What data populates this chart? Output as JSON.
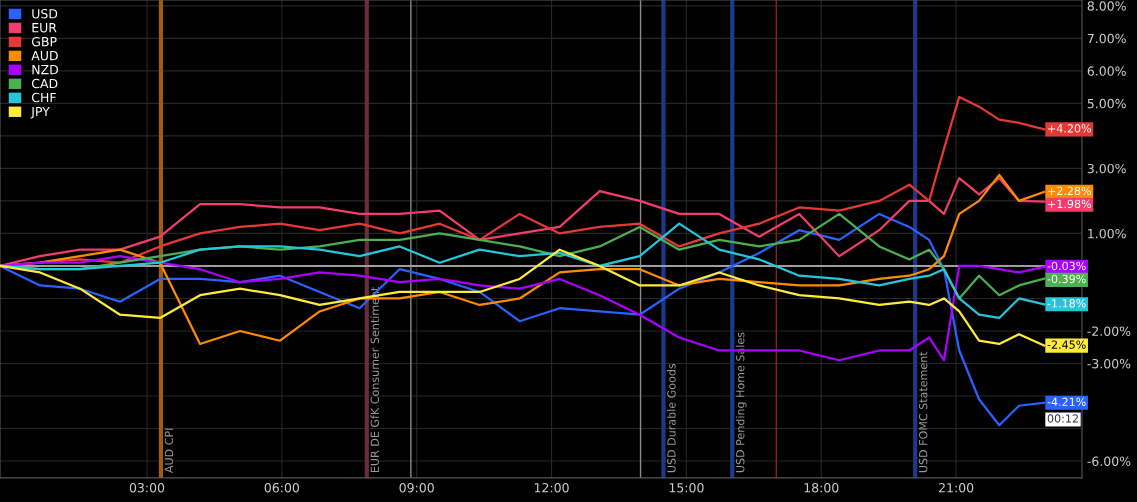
{
  "chart_data": {
    "type": "line",
    "x": [
      -0.27,
      0.62,
      1.51,
      2.4,
      3.29,
      4.18,
      5.07,
      5.96,
      6.84,
      7.73,
      8.62,
      9.51,
      10.4,
      11.29,
      12.18,
      13.07,
      13.96,
      14.84,
      15.73,
      16.62,
      17.51,
      18.4,
      19.29,
      19.96,
      20.4,
      20.73,
      21.07,
      21.51,
      21.96,
      22.4,
      22.96
    ],
    "series": [
      {
        "name": "USD",
        "color": "#2962ff",
        "values": [
          0,
          -0.6,
          -0.7,
          -1.1,
          -0.4,
          -0.4,
          -0.5,
          -0.3,
          -0.8,
          -1.3,
          -0.1,
          -0.4,
          -0.8,
          -1.7,
          -1.3,
          -1.4,
          -1.5,
          -0.7,
          -0.2,
          0.4,
          1.1,
          0.8,
          1.6,
          1.2,
          0.8,
          -0.1,
          -2.6,
          -4.1,
          -4.9,
          -4.3,
          -4.21
        ],
        "value_labels": [
          null,
          null,
          null,
          null,
          null,
          null,
          null,
          null,
          null,
          null,
          null,
          null,
          null,
          null,
          null,
          null,
          null,
          null,
          null,
          null,
          null,
          null,
          null,
          null,
          null,
          null,
          null,
          null,
          null,
          null,
          "-4.21%"
        ]
      },
      {
        "name": "EUR",
        "color": "#f23d6d",
        "values": [
          0,
          0.3,
          0.5,
          0.5,
          0.9,
          1.9,
          1.9,
          1.8,
          1.8,
          1.6,
          1.6,
          1.7,
          0.8,
          1.0,
          1.2,
          2.3,
          2.0,
          1.6,
          1.6,
          0.9,
          1.6,
          0.3,
          1.1,
          2.0,
          2.0,
          1.6,
          2.7,
          2.2,
          2.7,
          2.0,
          1.98
        ],
        "value_labels": [
          null,
          null,
          null,
          null,
          null,
          null,
          null,
          null,
          null,
          null,
          null,
          null,
          null,
          null,
          null,
          null,
          null,
          null,
          null,
          null,
          null,
          null,
          null,
          null,
          null,
          null,
          null,
          null,
          null,
          null,
          "+1.98%"
        ]
      },
      {
        "name": "GBP",
        "color": "#e53935",
        "values": [
          0,
          0.1,
          0.2,
          0.1,
          0.6,
          1.0,
          1.2,
          1.3,
          1.1,
          1.3,
          1.0,
          1.3,
          0.8,
          1.6,
          1.0,
          1.2,
          1.3,
          0.6,
          1.0,
          1.3,
          1.8,
          1.7,
          2.0,
          2.5,
          2.0,
          3.6,
          5.2,
          4.9,
          4.5,
          4.4,
          4.2
        ],
        "value_labels": [
          null,
          null,
          null,
          null,
          null,
          null,
          null,
          null,
          null,
          null,
          null,
          null,
          null,
          null,
          null,
          null,
          null,
          null,
          null,
          null,
          null,
          null,
          null,
          null,
          null,
          null,
          null,
          null,
          null,
          null,
          "+4.20%"
        ]
      },
      {
        "name": "AUD",
        "color": "#ff8c00",
        "values": [
          0,
          0.1,
          0.3,
          0.5,
          0.1,
          -2.4,
          -2.0,
          -2.3,
          -1.4,
          -1.0,
          -1.0,
          -0.8,
          -1.2,
          -1.0,
          -0.2,
          -0.1,
          -0.1,
          -0.6,
          -0.4,
          -0.5,
          -0.6,
          -0.6,
          -0.4,
          -0.3,
          -0.1,
          0.3,
          1.6,
          2.0,
          2.8,
          2.0,
          2.28
        ],
        "value_labels": [
          null,
          null,
          null,
          null,
          null,
          null,
          null,
          null,
          null,
          null,
          null,
          null,
          null,
          null,
          null,
          null,
          null,
          null,
          null,
          null,
          null,
          null,
          null,
          null,
          null,
          null,
          null,
          null,
          null,
          null,
          "+2.28%"
        ]
      },
      {
        "name": "NZD",
        "color": "#aa00ff",
        "values": [
          0,
          0.1,
          0.1,
          0.3,
          0.1,
          -0.1,
          -0.5,
          -0.4,
          -0.2,
          -0.3,
          -0.5,
          -0.4,
          -0.6,
          -0.7,
          -0.4,
          -0.9,
          -1.5,
          -2.2,
          -2.6,
          -2.6,
          -2.6,
          -2.9,
          -2.6,
          -2.6,
          -2.2,
          -2.9,
          0,
          0,
          -0.1,
          -0.2,
          -0.03
        ],
        "value_labels": [
          null,
          null,
          null,
          null,
          null,
          null,
          null,
          null,
          null,
          null,
          null,
          null,
          null,
          null,
          null,
          null,
          null,
          null,
          null,
          null,
          null,
          null,
          null,
          null,
          null,
          null,
          null,
          null,
          null,
          null,
          "-0.03%"
        ]
      },
      {
        "name": "CAD",
        "color": "#4caf50",
        "values": [
          0,
          -0.1,
          -0.1,
          0.1,
          0.3,
          0.5,
          0.6,
          0.5,
          0.6,
          0.8,
          0.8,
          1.0,
          0.8,
          0.6,
          0.3,
          0.6,
          1.2,
          0.5,
          0.8,
          0.6,
          0.8,
          1.6,
          0.6,
          0.2,
          0.5,
          -0.1,
          -1.0,
          -0.3,
          -0.9,
          -0.6,
          -0.39
        ],
        "value_labels": [
          null,
          null,
          null,
          null,
          null,
          null,
          null,
          null,
          null,
          null,
          null,
          null,
          null,
          null,
          null,
          null,
          null,
          null,
          null,
          null,
          null,
          null,
          null,
          null,
          null,
          null,
          null,
          null,
          null,
          null,
          "-0.39%"
        ]
      },
      {
        "name": "CHF",
        "color": "#26c6da",
        "values": [
          0,
          -0.1,
          -0.1,
          0,
          0.1,
          0.5,
          0.6,
          0.6,
          0.5,
          0.3,
          0.6,
          0.1,
          0.5,
          0.3,
          0.4,
          0,
          0.3,
          1.3,
          0.5,
          0.2,
          -0.3,
          -0.4,
          -0.6,
          -0.4,
          -0.3,
          -0.1,
          -1.0,
          -1.5,
          -1.6,
          -1.0,
          -1.18
        ],
        "value_labels": [
          null,
          null,
          null,
          null,
          null,
          null,
          null,
          null,
          null,
          null,
          null,
          null,
          null,
          null,
          null,
          null,
          null,
          null,
          null,
          null,
          null,
          null,
          null,
          null,
          null,
          null,
          null,
          null,
          null,
          null,
          "-1.18%"
        ]
      },
      {
        "name": "JPY",
        "color": "#ffeb3b",
        "values": [
          0,
          -0.2,
          -0.7,
          -1.5,
          -1.6,
          -0.9,
          -0.7,
          -0.9,
          -1.2,
          -1.0,
          -0.8,
          -0.8,
          -0.8,
          -0.4,
          0.5,
          0,
          -0.6,
          -0.6,
          -0.2,
          -0.6,
          -0.9,
          -1.0,
          -1.2,
          -1.1,
          -1.2,
          -1.0,
          -1.4,
          -2.3,
          -2.4,
          -2.1,
          -2.45
        ],
        "value_labels": [
          null,
          null,
          null,
          null,
          null,
          null,
          null,
          null,
          null,
          null,
          null,
          null,
          null,
          null,
          null,
          null,
          null,
          null,
          null,
          null,
          null,
          null,
          null,
          null,
          null,
          null,
          null,
          null,
          null,
          null,
          "-2.45%"
        ]
      }
    ],
    "xlim": [
      -0.27,
      23.8
    ],
    "xticks": [
      {
        "value": 3,
        "label": "03:00"
      },
      {
        "value": 6,
        "label": "06:00"
      },
      {
        "value": 9,
        "label": "09:00"
      },
      {
        "value": 12,
        "label": "12:00"
      },
      {
        "value": 15,
        "label": "15:00"
      },
      {
        "value": 18,
        "label": "18:00"
      },
      {
        "value": 21,
        "label": "21:00"
      }
    ],
    "ylim": [
      -6.52,
      8.18
    ],
    "yticks": [
      {
        "value": 8,
        "label": "8.00%"
      },
      {
        "value": 7,
        "label": "7.00%"
      },
      {
        "value": 6,
        "label": "6.00%"
      },
      {
        "value": 5,
        "label": "5.00%"
      },
      {
        "value": 4,
        "label": null
      },
      {
        "value": 3,
        "label": "3.00%"
      },
      {
        "value": 2,
        "label": null
      },
      {
        "value": 1,
        "label": "1.00%"
      },
      {
        "value": 0,
        "label": null
      },
      {
        "value": -1,
        "label": null
      },
      {
        "value": -2,
        "label": "-2.00%"
      },
      {
        "value": -3,
        "label": "-3.00%"
      },
      {
        "value": -4,
        "label": null
      },
      {
        "value": -5,
        "label": null
      },
      {
        "value": -6,
        "label": "-6.00%"
      }
    ],
    "ref_lines": [
      {
        "axis": "y",
        "value": 0,
        "color": "#9e9e9e"
      },
      {
        "axis": "x",
        "value": 3.31,
        "label": "AUD CPI",
        "color": "#a15c14"
      },
      {
        "axis": "x",
        "value": 7.89,
        "label": "EUR DE GfK Consumer Sentiment",
        "color": "#6b2c3c"
      },
      {
        "axis": "x",
        "value": 8.87,
        "color": "#8a8a8a"
      },
      {
        "axis": "x",
        "value": 13.98,
        "color": "#8a8a8a"
      },
      {
        "axis": "x",
        "value": 14.49,
        "label": "USD Durable Goods",
        "color": "#1a3a8c"
      },
      {
        "axis": "x",
        "value": 16.02,
        "label": "USD Pending Home Sales",
        "color": "#1a3a8c"
      },
      {
        "axis": "x",
        "value": 17.0,
        "color": "#8b2020"
      },
      {
        "axis": "x",
        "value": 20.09,
        "label": "USD FOMC Statement",
        "color": "#1a3a8c"
      }
    ],
    "annotations": [
      "00:12"
    ],
    "grid": true,
    "legend": "top left",
    "line_style": "solid",
    "marker": "none"
  }
}
